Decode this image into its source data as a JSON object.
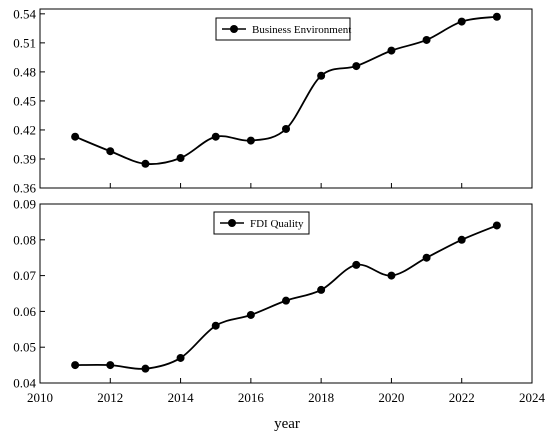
{
  "chart_data": [
    {
      "type": "line",
      "x": [
        2011,
        2012,
        2013,
        2014,
        2015,
        2016,
        2017,
        2018,
        2019,
        2020,
        2021,
        2022,
        2023
      ],
      "series": [
        {
          "name": "Business Environment",
          "values": [
            0.413,
            0.398,
            0.385,
            0.391,
            0.413,
            0.409,
            0.421,
            0.476,
            0.486,
            0.502,
            0.513,
            0.532,
            0.537
          ]
        }
      ],
      "xlim": [
        2010,
        2024
      ],
      "ylim": [
        0.36,
        0.545
      ],
      "yticks": [
        "0.36",
        "0.39",
        "0.42",
        "0.45",
        "0.48",
        "0.51",
        "0.54"
      ],
      "xlabel": "",
      "ylabel": "",
      "legend": "top-center",
      "grid": false,
      "marker": "filled-circle",
      "line_color": "#000000"
    },
    {
      "type": "line",
      "x": [
        2011,
        2012,
        2013,
        2014,
        2015,
        2016,
        2017,
        2018,
        2019,
        2020,
        2021,
        2022,
        2023
      ],
      "series": [
        {
          "name": "FDI Quality",
          "values": [
            0.045,
            0.045,
            0.044,
            0.047,
            0.056,
            0.059,
            0.063,
            0.066,
            0.073,
            0.07,
            0.075,
            0.08,
            0.084
          ]
        }
      ],
      "xlim": [
        2010,
        2024
      ],
      "ylim": [
        0.04,
        0.09
      ],
      "yticks": [
        "0.04",
        "0.05",
        "0.06",
        "0.07",
        "0.08",
        "0.09"
      ],
      "xticks": [
        "2010",
        "2012",
        "2014",
        "2016",
        "2018",
        "2020",
        "2022",
        "2024"
      ],
      "xlabel": "year",
      "ylabel": "",
      "legend": "top-left",
      "grid": false,
      "marker": "filled-circle",
      "line_color": "#000000"
    }
  ]
}
